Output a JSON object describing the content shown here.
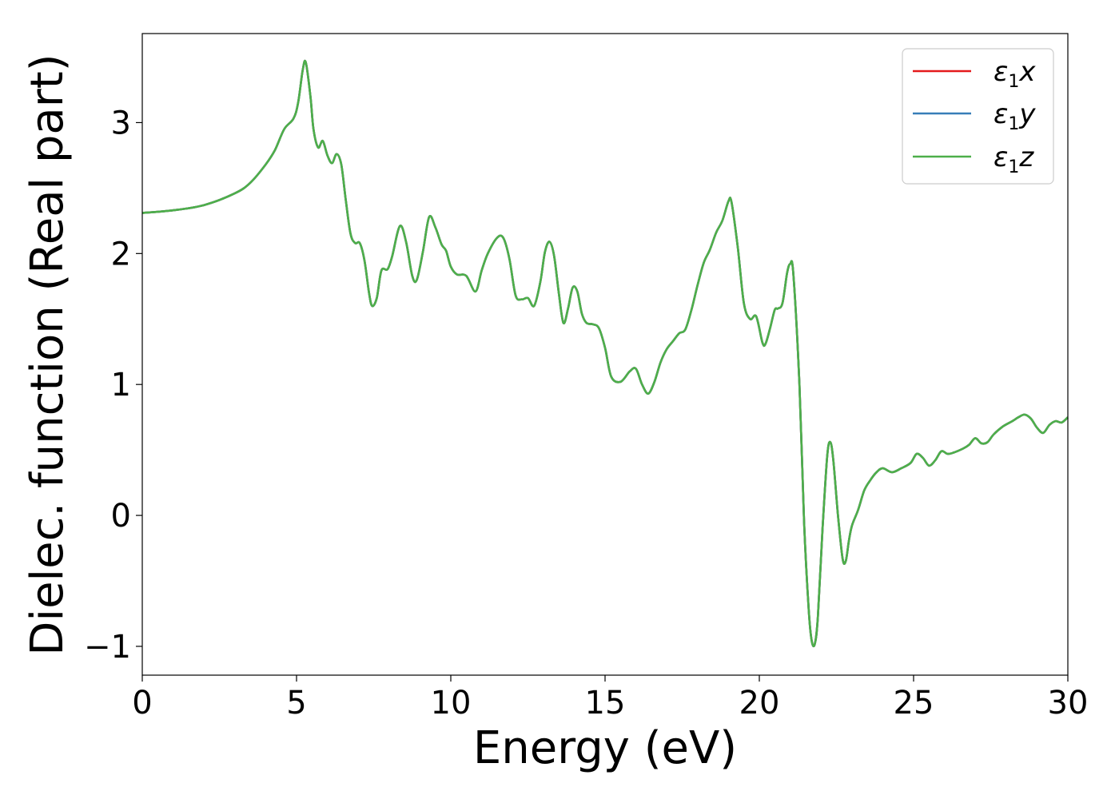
{
  "chart_data": {
    "type": "line",
    "title": "",
    "xlabel": "Energy (eV)",
    "ylabel": "Dielec. function (Real part)",
    "xlim": [
      0,
      30
    ],
    "ylim": [
      -1.22,
      3.68
    ],
    "xticks": [
      0,
      5,
      10,
      15,
      20,
      25,
      30
    ],
    "yticks": [
      -1,
      0,
      1,
      2,
      3
    ],
    "grid": false,
    "legend_position": "top-right",
    "x": [
      0,
      1,
      2,
      3,
      3.5,
      4,
      4.3,
      4.6,
      4.9,
      5.05,
      5.2,
      5.3,
      5.45,
      5.55,
      5.7,
      5.85,
      6.0,
      6.15,
      6.3,
      6.45,
      6.6,
      6.75,
      6.9,
      7.05,
      7.2,
      7.35,
      7.45,
      7.6,
      7.75,
      7.95,
      8.1,
      8.35,
      8.55,
      8.75,
      8.9,
      9.1,
      9.3,
      9.5,
      9.7,
      9.85,
      10.0,
      10.2,
      10.5,
      10.8,
      11.0,
      11.2,
      11.5,
      11.7,
      11.9,
      12.1,
      12.3,
      12.5,
      12.7,
      12.9,
      13.05,
      13.2,
      13.35,
      13.5,
      13.65,
      13.8,
      13.95,
      14.1,
      14.25,
      14.4,
      14.6,
      14.8,
      15.0,
      15.2,
      15.5,
      15.8,
      16.0,
      16.2,
      16.4,
      16.6,
      16.8,
      17.0,
      17.2,
      17.4,
      17.6,
      17.8,
      18.0,
      18.2,
      18.4,
      18.6,
      18.8,
      19.0,
      19.1,
      19.3,
      19.5,
      19.7,
      19.9,
      20.1,
      20.2,
      20.35,
      20.5,
      20.6,
      20.75,
      20.9,
      21.0,
      21.1,
      21.3,
      21.45,
      21.6,
      21.7,
      21.8,
      21.9,
      22.05,
      22.2,
      22.3,
      22.4,
      22.55,
      22.7,
      22.8,
      22.9,
      23.0,
      23.2,
      23.4,
      23.6,
      23.8,
      24.0,
      24.3,
      24.6,
      24.9,
      25.1,
      25.3,
      25.5,
      25.7,
      25.9,
      26.1,
      26.3,
      26.6,
      26.8,
      27.0,
      27.2,
      27.4,
      27.6,
      27.9,
      28.2,
      28.4,
      28.6,
      28.8,
      29.0,
      29.2,
      29.4,
      29.6,
      29.8,
      30.0
    ],
    "series": [
      {
        "name": "ε₁x",
        "color": "#e41a1c",
        "y": [
          2.31,
          2.33,
          2.37,
          2.46,
          2.54,
          2.68,
          2.79,
          2.95,
          3.03,
          3.15,
          3.4,
          3.46,
          3.2,
          2.95,
          2.81,
          2.86,
          2.75,
          2.69,
          2.76,
          2.68,
          2.4,
          2.15,
          2.08,
          2.08,
          1.95,
          1.7,
          1.6,
          1.66,
          1.87,
          1.88,
          1.98,
          2.21,
          2.09,
          1.83,
          1.8,
          2.02,
          2.28,
          2.2,
          2.07,
          2.02,
          1.9,
          1.84,
          1.83,
          1.71,
          1.87,
          2.0,
          2.12,
          2.12,
          1.96,
          1.68,
          1.65,
          1.66,
          1.6,
          1.78,
          2.01,
          2.09,
          1.98,
          1.7,
          1.47,
          1.58,
          1.74,
          1.71,
          1.54,
          1.47,
          1.46,
          1.43,
          1.28,
          1.06,
          1.02,
          1.1,
          1.12,
          1.0,
          0.93,
          1.02,
          1.17,
          1.27,
          1.33,
          1.39,
          1.42,
          1.57,
          1.76,
          1.93,
          2.03,
          2.16,
          2.25,
          2.4,
          2.39,
          2.05,
          1.62,
          1.5,
          1.52,
          1.32,
          1.31,
          1.43,
          1.57,
          1.58,
          1.62,
          1.85,
          1.92,
          1.85,
          1.0,
          -0.05,
          -0.72,
          -0.96,
          -0.98,
          -0.77,
          -0.1,
          0.45,
          0.56,
          0.42,
          0.0,
          -0.33,
          -0.35,
          -0.2,
          -0.08,
          0.04,
          0.19,
          0.27,
          0.33,
          0.36,
          0.33,
          0.36,
          0.4,
          0.47,
          0.44,
          0.38,
          0.42,
          0.49,
          0.47,
          0.48,
          0.51,
          0.54,
          0.59,
          0.55,
          0.56,
          0.62,
          0.68,
          0.72,
          0.75,
          0.77,
          0.74,
          0.67,
          0.63,
          0.69,
          0.72,
          0.71,
          0.75
        ]
      },
      {
        "name": "ε₁y",
        "color": "#377eb8",
        "y": [
          2.31,
          2.33,
          2.37,
          2.46,
          2.54,
          2.68,
          2.79,
          2.95,
          3.03,
          3.15,
          3.4,
          3.46,
          3.2,
          2.95,
          2.81,
          2.86,
          2.75,
          2.69,
          2.76,
          2.68,
          2.4,
          2.15,
          2.08,
          2.08,
          1.95,
          1.7,
          1.6,
          1.66,
          1.87,
          1.88,
          1.98,
          2.21,
          2.09,
          1.83,
          1.8,
          2.02,
          2.28,
          2.2,
          2.07,
          2.02,
          1.9,
          1.84,
          1.83,
          1.71,
          1.87,
          2.0,
          2.12,
          2.12,
          1.96,
          1.68,
          1.65,
          1.66,
          1.6,
          1.78,
          2.01,
          2.09,
          1.98,
          1.7,
          1.47,
          1.58,
          1.74,
          1.71,
          1.54,
          1.47,
          1.46,
          1.43,
          1.28,
          1.06,
          1.02,
          1.1,
          1.12,
          1.0,
          0.93,
          1.02,
          1.17,
          1.27,
          1.33,
          1.39,
          1.42,
          1.57,
          1.76,
          1.93,
          2.03,
          2.16,
          2.25,
          2.4,
          2.39,
          2.05,
          1.62,
          1.5,
          1.52,
          1.32,
          1.31,
          1.43,
          1.57,
          1.58,
          1.62,
          1.85,
          1.92,
          1.85,
          1.0,
          -0.05,
          -0.72,
          -0.96,
          -0.98,
          -0.77,
          -0.1,
          0.45,
          0.56,
          0.42,
          0.0,
          -0.33,
          -0.35,
          -0.2,
          -0.08,
          0.04,
          0.19,
          0.27,
          0.33,
          0.36,
          0.33,
          0.36,
          0.4,
          0.47,
          0.44,
          0.38,
          0.42,
          0.49,
          0.47,
          0.48,
          0.51,
          0.54,
          0.59,
          0.55,
          0.56,
          0.62,
          0.68,
          0.72,
          0.75,
          0.77,
          0.74,
          0.67,
          0.63,
          0.69,
          0.72,
          0.71,
          0.75
        ]
      },
      {
        "name": "ε₁z",
        "color": "#4daf4a",
        "y": [
          2.31,
          2.33,
          2.37,
          2.46,
          2.54,
          2.68,
          2.79,
          2.95,
          3.03,
          3.15,
          3.4,
          3.46,
          3.2,
          2.95,
          2.81,
          2.86,
          2.75,
          2.69,
          2.76,
          2.68,
          2.4,
          2.15,
          2.08,
          2.08,
          1.95,
          1.7,
          1.6,
          1.66,
          1.87,
          1.88,
          1.98,
          2.21,
          2.09,
          1.83,
          1.8,
          2.02,
          2.28,
          2.2,
          2.07,
          2.02,
          1.9,
          1.84,
          1.83,
          1.71,
          1.87,
          2.0,
          2.12,
          2.12,
          1.96,
          1.68,
          1.65,
          1.66,
          1.6,
          1.78,
          2.01,
          2.09,
          1.98,
          1.7,
          1.47,
          1.58,
          1.74,
          1.71,
          1.54,
          1.47,
          1.46,
          1.43,
          1.28,
          1.06,
          1.02,
          1.1,
          1.12,
          1.0,
          0.93,
          1.02,
          1.17,
          1.27,
          1.33,
          1.39,
          1.42,
          1.57,
          1.76,
          1.93,
          2.03,
          2.16,
          2.25,
          2.4,
          2.39,
          2.05,
          1.62,
          1.5,
          1.52,
          1.32,
          1.31,
          1.43,
          1.57,
          1.58,
          1.62,
          1.85,
          1.92,
          1.85,
          1.0,
          -0.05,
          -0.72,
          -0.96,
          -0.98,
          -0.77,
          -0.1,
          0.45,
          0.56,
          0.42,
          0.0,
          -0.33,
          -0.35,
          -0.2,
          -0.08,
          0.04,
          0.19,
          0.27,
          0.33,
          0.36,
          0.33,
          0.36,
          0.4,
          0.47,
          0.44,
          0.38,
          0.42,
          0.49,
          0.47,
          0.48,
          0.51,
          0.54,
          0.59,
          0.55,
          0.56,
          0.62,
          0.68,
          0.72,
          0.75,
          0.77,
          0.74,
          0.67,
          0.63,
          0.69,
          0.72,
          0.71,
          0.75
        ]
      }
    ]
  },
  "legend": {
    "items": [
      {
        "base": "ε",
        "sub": "1",
        "axis": "x",
        "color": "#e41a1c"
      },
      {
        "base": "ε",
        "sub": "1",
        "axis": "y",
        "color": "#377eb8"
      },
      {
        "base": "ε",
        "sub": "1",
        "axis": "z",
        "color": "#4daf4a"
      }
    ]
  }
}
